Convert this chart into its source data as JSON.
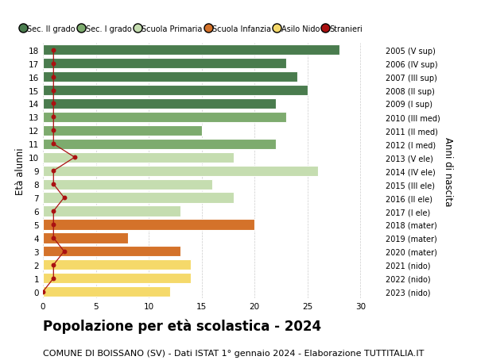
{
  "ages": [
    18,
    17,
    16,
    15,
    14,
    13,
    12,
    11,
    10,
    9,
    8,
    7,
    6,
    5,
    4,
    3,
    2,
    1,
    0
  ],
  "years": [
    "2005 (V sup)",
    "2006 (IV sup)",
    "2007 (III sup)",
    "2008 (II sup)",
    "2009 (I sup)",
    "2010 (III med)",
    "2011 (II med)",
    "2012 (I med)",
    "2013 (V ele)",
    "2014 (IV ele)",
    "2015 (III ele)",
    "2016 (II ele)",
    "2017 (I ele)",
    "2018 (mater)",
    "2019 (mater)",
    "2020 (mater)",
    "2021 (nido)",
    "2022 (nido)",
    "2023 (nido)"
  ],
  "bar_values": [
    28,
    23,
    24,
    25,
    22,
    23,
    15,
    22,
    18,
    26,
    16,
    18,
    13,
    20,
    8,
    13,
    14,
    14,
    12
  ],
  "bar_colors": [
    "#4a7c4e",
    "#4a7c4e",
    "#4a7c4e",
    "#4a7c4e",
    "#4a7c4e",
    "#7dab6e",
    "#7dab6e",
    "#7dab6e",
    "#c5ddb0",
    "#c5ddb0",
    "#c5ddb0",
    "#c5ddb0",
    "#c5ddb0",
    "#d4722a",
    "#d4722a",
    "#d4722a",
    "#f5d96a",
    "#f5d96a",
    "#f5d96a"
  ],
  "stranieri_values": [
    1,
    1,
    1,
    1,
    1,
    1,
    1,
    1,
    3,
    1,
    1,
    2,
    1,
    1,
    1,
    2,
    1,
    1,
    0
  ],
  "stranieri_color": "#aa1111",
  "title": "Popolazione per età scolastica - 2024",
  "subtitle": "COMUNE DI BOISSANO (SV) - Dati ISTAT 1° gennaio 2024 - Elaborazione TUTTITALIA.IT",
  "ylabel_left": "Età alunni",
  "ylabel_right": "Anni di nascita",
  "xlim": [
    0,
    32
  ],
  "xticks": [
    0,
    5,
    10,
    15,
    20,
    25,
    30
  ],
  "legend_labels": [
    "Sec. II grado",
    "Sec. I grado",
    "Scuola Primaria",
    "Scuola Infanzia",
    "Asilo Nido",
    "Stranieri"
  ],
  "legend_colors": [
    "#4a7c4e",
    "#7dab6e",
    "#c5ddb0",
    "#d4722a",
    "#f5d96a",
    "#aa1111"
  ],
  "bg_color": "#ffffff",
  "title_fontsize": 12,
  "subtitle_fontsize": 8
}
